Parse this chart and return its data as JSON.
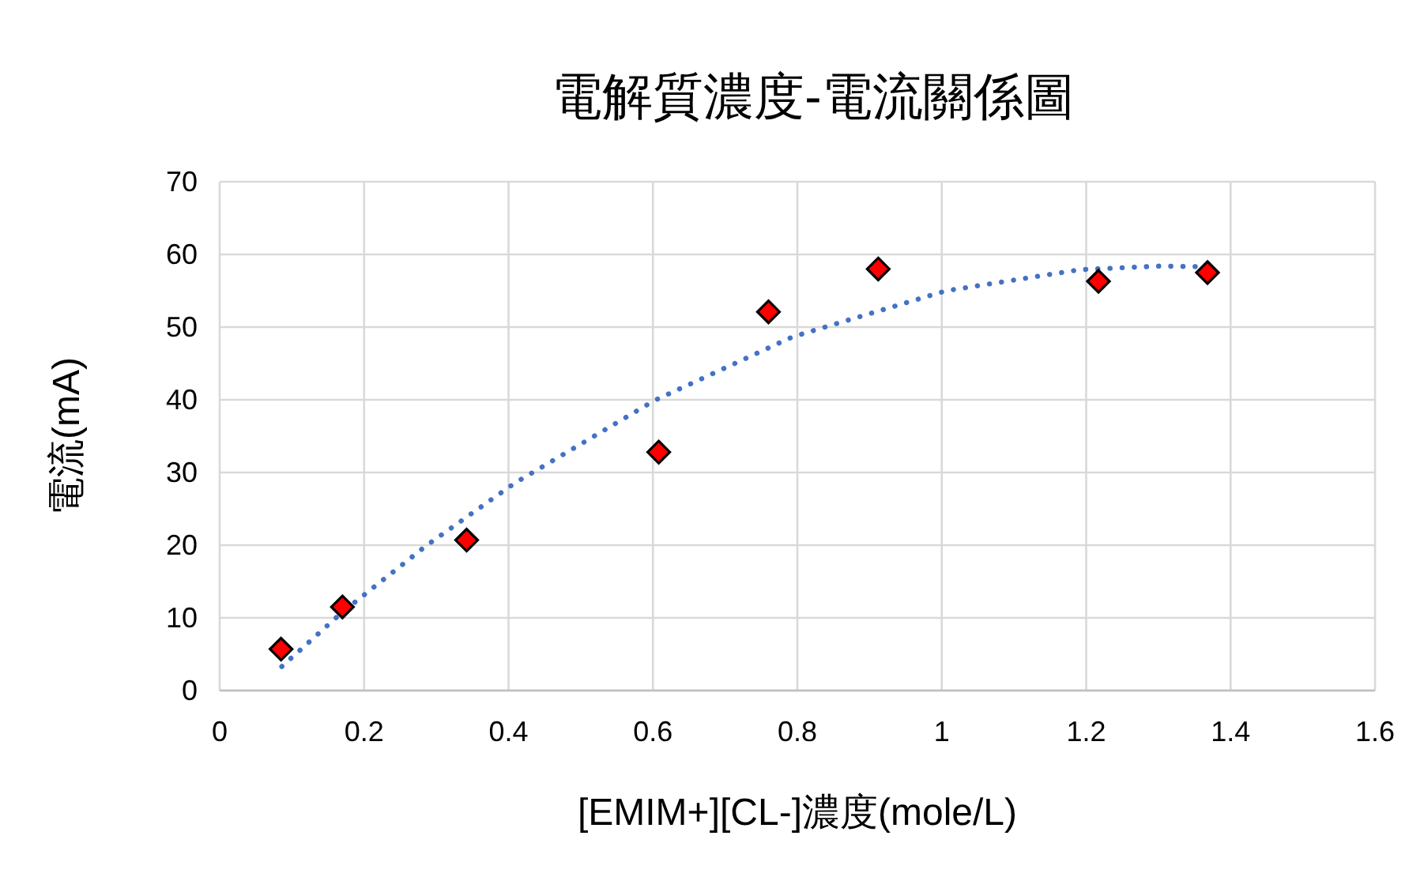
{
  "chart_data": {
    "type": "scatter",
    "title": "電解質濃度-電流關係圖",
    "xlabel": "[EMIM+][CL-]濃度(mole/L)",
    "ylabel": "電流(mA)",
    "xlim": [
      0,
      1.6
    ],
    "xticks": [
      0,
      0.2,
      0.4,
      0.6,
      0.8,
      1,
      1.2,
      1.4,
      1.6
    ],
    "ylim": [
      0,
      70
    ],
    "yticks": [
      0,
      10,
      20,
      30,
      40,
      50,
      60,
      70
    ],
    "grid": true,
    "series": [
      {
        "type": "scatter",
        "color": "#ff0000",
        "marker": "diamond",
        "x": [
          0.085,
          0.17,
          0.342,
          0.608,
          0.76,
          0.912,
          1.217,
          1.368
        ],
        "values": [
          5.7,
          11.5,
          20.7,
          32.8,
          52.1,
          58.0,
          56.3,
          57.5
        ]
      },
      {
        "type": "line",
        "color": "#4472c4",
        "line_style": "dotted",
        "x": [
          0.086,
          0.17,
          0.287,
          0.408,
          0.602,
          0.79,
          0.808,
          1.006,
          1.191,
          1.303,
          1.366
        ],
        "values": [
          3.3,
          10.8,
          20,
          28.5,
          39.9,
          48.5,
          49.1,
          55,
          57.9,
          58.4,
          58.3
        ]
      }
    ]
  }
}
